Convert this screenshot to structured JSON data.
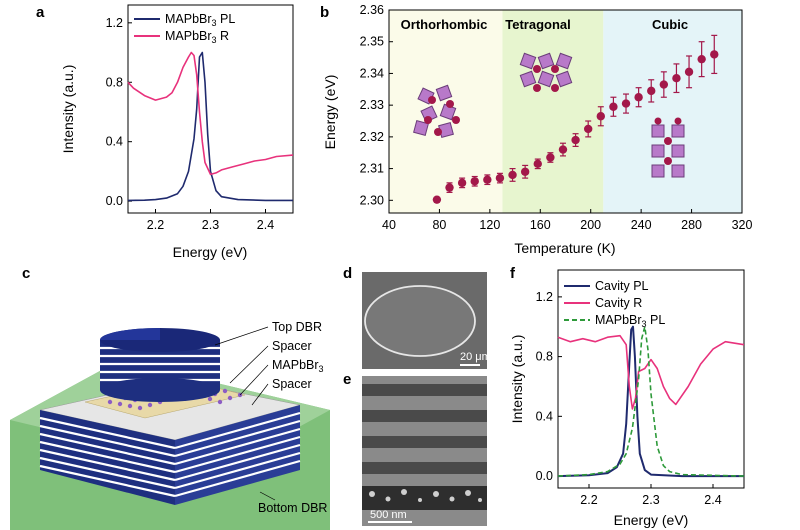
{
  "figure": {
    "panel_labels": [
      "a",
      "b",
      "c",
      "d",
      "e",
      "f"
    ],
    "colors": {
      "pl_blue": "#1f2a6e",
      "reflect_pink": "#e8327c",
      "green_dash": "#2e9a3a",
      "dot_maroon": "#a3184a",
      "ortho_bg": "#fbfbe9",
      "tetra_bg": "#e7f5cf",
      "cubic_bg": "#e4f4f8"
    }
  },
  "chart_data": [
    {
      "id": "a",
      "type": "line",
      "xlabel": "Energy (eV)",
      "ylabel": "Intensity (a.u.)",
      "xlim": [
        2.15,
        2.45
      ],
      "ylim": [
        -0.08,
        1.32
      ],
      "xticks": [
        "2.2",
        "2.3",
        "2.4"
      ],
      "xtick_values": [
        2.2,
        2.3,
        2.4
      ],
      "yticks": [
        "0.0",
        "0.4",
        "0.8",
        "1.2"
      ],
      "ytick_values": [
        0.0,
        0.4,
        0.8,
        1.2
      ],
      "legend": [
        {
          "label": "MAPbBr",
          "sub": "3",
          "suffix": " PL",
          "color": "#1f2a6e"
        },
        {
          "label": "MAPbBr",
          "sub": "3",
          "suffix": " R",
          "color": "#e8327c"
        }
      ],
      "series": [
        {
          "name": "MAPbBr3 PL",
          "color": "#1f2a6e",
          "x": [
            2.15,
            2.18,
            2.2,
            2.22,
            2.24,
            2.25,
            2.26,
            2.27,
            2.275,
            2.28,
            2.285,
            2.29,
            2.295,
            2.3,
            2.31,
            2.32,
            2.35,
            2.4,
            2.45
          ],
          "y": [
            0.005,
            0.006,
            0.01,
            0.02,
            0.05,
            0.1,
            0.2,
            0.42,
            0.62,
            0.97,
            1.0,
            0.8,
            0.45,
            0.2,
            0.07,
            0.03,
            0.01,
            0.005,
            0.005
          ]
        },
        {
          "name": "MAPbBr3 R",
          "color": "#e8327c",
          "x": [
            2.15,
            2.16,
            2.18,
            2.2,
            2.21,
            2.22,
            2.23,
            2.24,
            2.25,
            2.26,
            2.265,
            2.27,
            2.275,
            2.28,
            2.285,
            2.29,
            2.3,
            2.31,
            2.32,
            2.34,
            2.36,
            2.38,
            2.4,
            2.42,
            2.45
          ],
          "y": [
            0.8,
            0.76,
            0.71,
            0.68,
            0.69,
            0.7,
            0.73,
            0.8,
            0.9,
            0.97,
            1.0,
            0.98,
            0.85,
            0.6,
            0.4,
            0.26,
            0.18,
            0.19,
            0.21,
            0.23,
            0.25,
            0.27,
            0.28,
            0.3,
            0.31
          ]
        }
      ]
    },
    {
      "id": "b",
      "type": "scatter",
      "xlabel": "Temperature (K)",
      "ylabel": "Energy (eV)",
      "xlim": [
        40,
        320
      ],
      "ylim": [
        2.296,
        2.36
      ],
      "xticks": [
        "40",
        "80",
        "120",
        "160",
        "200",
        "240",
        "280",
        "320"
      ],
      "xtick_values": [
        40,
        80,
        120,
        160,
        200,
        240,
        280,
        320
      ],
      "yticks": [
        "2.30",
        "2.31",
        "2.32",
        "2.33",
        "2.34",
        "2.35",
        "2.36"
      ],
      "ytick_values": [
        2.3,
        2.31,
        2.32,
        2.33,
        2.34,
        2.35,
        2.36
      ],
      "phases": [
        {
          "name": "Orthorhombic",
          "from": 40,
          "to": 130
        },
        {
          "name": "Tetragonal",
          "from": 130,
          "to": 210
        },
        {
          "name": "Cubic",
          "from": 210,
          "to": 320
        }
      ],
      "x": [
        78,
        88,
        98,
        108,
        118,
        128,
        138,
        148,
        158,
        168,
        178,
        188,
        198,
        208,
        218,
        228,
        238,
        248,
        258,
        268,
        278,
        288,
        298
      ],
      "y": [
        2.3002,
        2.304,
        2.3055,
        2.306,
        2.3065,
        2.307,
        2.308,
        2.309,
        2.3115,
        2.3135,
        2.316,
        2.319,
        2.3225,
        2.3265,
        2.3295,
        2.3305,
        2.3325,
        2.3345,
        2.3365,
        2.3385,
        2.3405,
        2.3445,
        2.346
      ],
      "yerr": [
        0.0,
        0.0015,
        0.0015,
        0.0015,
        0.0015,
        0.0015,
        0.002,
        0.002,
        0.0015,
        0.0015,
        0.002,
        0.002,
        0.0025,
        0.003,
        0.003,
        0.003,
        0.003,
        0.0035,
        0.004,
        0.0045,
        0.005,
        0.0055,
        0.006
      ]
    },
    {
      "id": "f",
      "type": "line",
      "xlabel": "Energy (eV)",
      "ylabel": "Intensity (a.u.)",
      "xlim": [
        2.15,
        2.45
      ],
      "ylim": [
        -0.08,
        1.38
      ],
      "xticks": [
        "2.2",
        "2.3",
        "2.4"
      ],
      "xtick_values": [
        2.2,
        2.3,
        2.4
      ],
      "yticks": [
        "0.0",
        "0.4",
        "0.8",
        "1.2"
      ],
      "ytick_values": [
        0.0,
        0.4,
        0.8,
        1.2
      ],
      "legend": [
        {
          "label": "Cavity PL",
          "sub": "",
          "suffix": "",
          "color": "#1f2a6e",
          "dash": false
        },
        {
          "label": "Cavity R",
          "sub": "",
          "suffix": "",
          "color": "#e8327c",
          "dash": false
        },
        {
          "label": "MAPbBr",
          "sub": "3",
          "suffix": " PL",
          "color": "#2e9a3a",
          "dash": true
        }
      ],
      "series": [
        {
          "name": "Cavity PL",
          "color": "#1f2a6e",
          "dash": false,
          "x": [
            2.15,
            2.2,
            2.23,
            2.245,
            2.255,
            2.26,
            2.265,
            2.268,
            2.271,
            2.274,
            2.278,
            2.282,
            2.29,
            2.3,
            2.35,
            2.45
          ],
          "y": [
            0.0,
            0.005,
            0.02,
            0.06,
            0.15,
            0.35,
            0.75,
            0.98,
            1.0,
            0.8,
            0.4,
            0.15,
            0.04,
            0.01,
            0.0,
            0.0
          ],
          "emphasis": true
        },
        {
          "name": "Cavity R",
          "color": "#e8327c",
          "dash": false,
          "x": [
            2.15,
            2.17,
            2.19,
            2.21,
            2.23,
            2.25,
            2.26,
            2.265,
            2.27,
            2.275,
            2.28,
            2.29,
            2.3,
            2.31,
            2.32,
            2.33,
            2.34,
            2.36,
            2.38,
            2.4,
            2.42,
            2.45
          ],
          "y": [
            0.93,
            0.9,
            0.92,
            0.9,
            0.93,
            0.94,
            0.88,
            0.6,
            0.45,
            0.52,
            0.7,
            0.72,
            0.78,
            0.72,
            0.6,
            0.52,
            0.48,
            0.6,
            0.75,
            0.85,
            0.9,
            0.88
          ]
        },
        {
          "name": "MAPbBr3 PL",
          "color": "#2e9a3a",
          "dash": true,
          "x": [
            2.15,
            2.2,
            2.23,
            2.25,
            2.26,
            2.27,
            2.28,
            2.285,
            2.29,
            2.295,
            2.3,
            2.31,
            2.32,
            2.33,
            2.35,
            2.45
          ],
          "y": [
            0.0,
            0.01,
            0.03,
            0.08,
            0.15,
            0.32,
            0.65,
            0.92,
            1.0,
            0.85,
            0.55,
            0.2,
            0.07,
            0.03,
            0.01,
            0.0
          ]
        }
      ]
    }
  ],
  "panel_c": {
    "labels": [
      {
        "text": "Top DBR",
        "sub": "",
        "suffix": ""
      },
      {
        "text": "Spacer",
        "sub": "",
        "suffix": ""
      },
      {
        "text": "MAPbBr",
        "sub": "3",
        "suffix": ""
      },
      {
        "text": "Spacer",
        "sub": "",
        "suffix": ""
      },
      {
        "text": "Bottom DBR",
        "sub": "",
        "suffix": ""
      }
    ]
  },
  "panel_d": {
    "scale": "20 μm"
  },
  "panel_e": {
    "scale": "500 nm"
  }
}
